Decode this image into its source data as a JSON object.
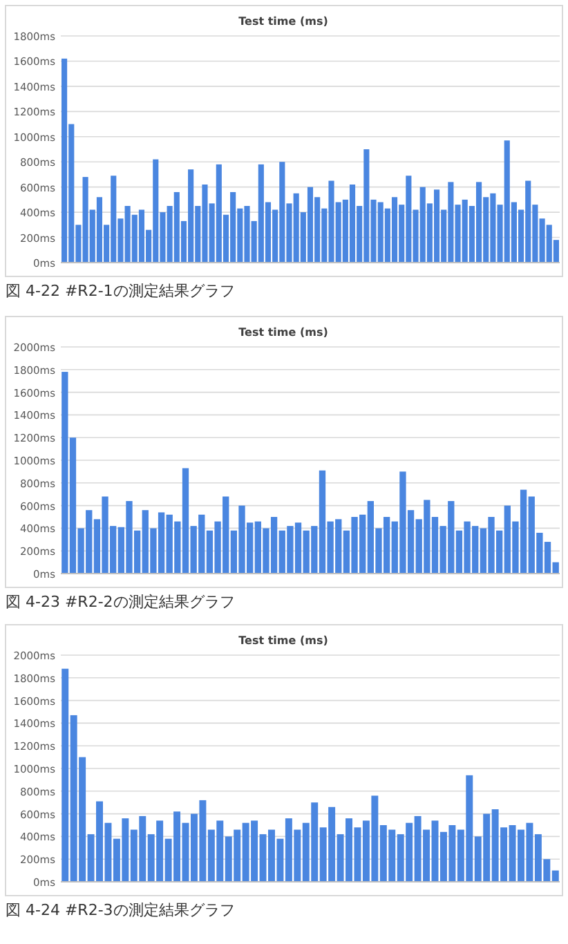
{
  "chart_data": [
    {
      "type": "bar",
      "title": "Test time (ms)",
      "color": "#4a86e0",
      "grid": "y",
      "tick_labels": "y",
      "ylim": [
        0,
        1800
      ],
      "yticks": [
        {
          "value": 0,
          "label": "0ms"
        },
        {
          "value": 200,
          "label": "200ms"
        },
        {
          "value": 400,
          "label": "400ms"
        },
        {
          "value": 600,
          "label": "600ms"
        },
        {
          "value": 800,
          "label": "800ms"
        },
        {
          "value": 1000,
          "label": "1000ms"
        },
        {
          "value": 1200,
          "label": "1200ms"
        },
        {
          "value": 1400,
          "label": "1400ms"
        },
        {
          "value": 1600,
          "label": "1600ms"
        },
        {
          "value": 1800,
          "label": "1800ms"
        }
      ],
      "categories": [
        null,
        null,
        null,
        null,
        null,
        null,
        null,
        null,
        null,
        null,
        null,
        null,
        null,
        null,
        null,
        null,
        null,
        null,
        null,
        null,
        null,
        null,
        null,
        null,
        null,
        null,
        null,
        null,
        null,
        null,
        null,
        null,
        null,
        null,
        null,
        null,
        null,
        null,
        null,
        null,
        null,
        null,
        null,
        null,
        null,
        null,
        null,
        null,
        null,
        null,
        null,
        null,
        null,
        null,
        null,
        null,
        null,
        null,
        null,
        null,
        null,
        null,
        null,
        null,
        null,
        null,
        null,
        null,
        null,
        null,
        null
      ],
      "values": [
        1620,
        1100,
        300,
        680,
        420,
        520,
        300,
        690,
        350,
        450,
        380,
        420,
        260,
        820,
        400,
        450,
        560,
        330,
        740,
        450,
        620,
        470,
        780,
        380,
        560,
        430,
        450,
        330,
        780,
        480,
        420,
        800,
        470,
        550,
        400,
        600,
        520,
        430,
        650,
        480,
        500,
        620,
        450,
        900,
        500,
        480,
        430,
        520,
        460,
        690,
        420,
        600,
        470,
        580,
        420,
        640,
        460,
        500,
        450,
        640,
        520,
        550,
        460,
        970,
        480,
        420,
        650,
        460,
        350,
        300,
        180
      ],
      "annotations": [
        "図 4-22 #R2-1の測定結果グラフ"
      ]
    },
    {
      "type": "bar",
      "title": "Test time (ms)",
      "color": "#4a86e0",
      "grid": "y",
      "tick_labels": "y",
      "ylim": [
        0,
        2000
      ],
      "yticks": [
        {
          "value": 0,
          "label": "0ms"
        },
        {
          "value": 200,
          "label": "200ms"
        },
        {
          "value": 400,
          "label": "400ms"
        },
        {
          "value": 600,
          "label": "600ms"
        },
        {
          "value": 800,
          "label": "800ms"
        },
        {
          "value": 1000,
          "label": "1000ms"
        },
        {
          "value": 1200,
          "label": "1200ms"
        },
        {
          "value": 1400,
          "label": "1400ms"
        },
        {
          "value": 1600,
          "label": "1600ms"
        },
        {
          "value": 1800,
          "label": "1800ms"
        },
        {
          "value": 2000,
          "label": "2000ms"
        }
      ],
      "categories": [
        null,
        null,
        null,
        null,
        null,
        null,
        null,
        null,
        null,
        null,
        null,
        null,
        null,
        null,
        null,
        null,
        null,
        null,
        null,
        null,
        null,
        null,
        null,
        null,
        null,
        null,
        null,
        null,
        null,
        null,
        null,
        null,
        null,
        null,
        null,
        null,
        null,
        null,
        null,
        null,
        null,
        null,
        null,
        null,
        null,
        null,
        null,
        null,
        null,
        null,
        null,
        null,
        null,
        null,
        null,
        null,
        null,
        null,
        null,
        null,
        null,
        null
      ],
      "values": [
        1780,
        1200,
        400,
        560,
        480,
        680,
        420,
        410,
        640,
        380,
        560,
        400,
        540,
        520,
        460,
        930,
        420,
        520,
        380,
        460,
        680,
        380,
        600,
        450,
        460,
        400,
        500,
        380,
        420,
        450,
        380,
        420,
        910,
        460,
        480,
        380,
        500,
        520,
        640,
        400,
        500,
        460,
        900,
        560,
        480,
        650,
        500,
        420,
        640,
        380,
        460,
        420,
        400,
        500,
        380,
        600,
        460,
        740,
        680,
        360,
        280,
        100
      ],
      "annotations": [
        "図 4-23 #R2-2の測定結果グラフ"
      ]
    },
    {
      "type": "bar",
      "title": "Test time (ms)",
      "color": "#4a86e0",
      "grid": "y",
      "tick_labels": "y",
      "ylim": [
        0,
        2000
      ],
      "yticks": [
        {
          "value": 0,
          "label": "0ms"
        },
        {
          "value": 200,
          "label": "200ms"
        },
        {
          "value": 400,
          "label": "400ms"
        },
        {
          "value": 600,
          "label": "600ms"
        },
        {
          "value": 800,
          "label": "800ms"
        },
        {
          "value": 1000,
          "label": "1000ms"
        },
        {
          "value": 1200,
          "label": "1200ms"
        },
        {
          "value": 1400,
          "label": "1400ms"
        },
        {
          "value": 1600,
          "label": "1600ms"
        },
        {
          "value": 1800,
          "label": "1800ms"
        },
        {
          "value": 2000,
          "label": "2000ms"
        }
      ],
      "categories": [
        null,
        null,
        null,
        null,
        null,
        null,
        null,
        null,
        null,
        null,
        null,
        null,
        null,
        null,
        null,
        null,
        null,
        null,
        null,
        null,
        null,
        null,
        null,
        null,
        null,
        null,
        null,
        null,
        null,
        null,
        null,
        null,
        null,
        null,
        null,
        null,
        null,
        null,
        null,
        null,
        null,
        null,
        null,
        null,
        null,
        null,
        null,
        null,
        null,
        null,
        null,
        null,
        null,
        null,
        null,
        null,
        null,
        null
      ],
      "values": [
        1880,
        1470,
        1100,
        420,
        710,
        520,
        380,
        560,
        460,
        580,
        420,
        540,
        380,
        620,
        520,
        600,
        720,
        460,
        540,
        400,
        460,
        520,
        540,
        420,
        460,
        380,
        560,
        460,
        520,
        700,
        480,
        660,
        420,
        560,
        480,
        540,
        760,
        500,
        460,
        420,
        520,
        580,
        460,
        540,
        440,
        500,
        460,
        940,
        400,
        600,
        640,
        480,
        500,
        460,
        520,
        420,
        200,
        100
      ],
      "annotations": [
        "図 4-24 #R2-3の測定結果グラフ"
      ]
    }
  ]
}
